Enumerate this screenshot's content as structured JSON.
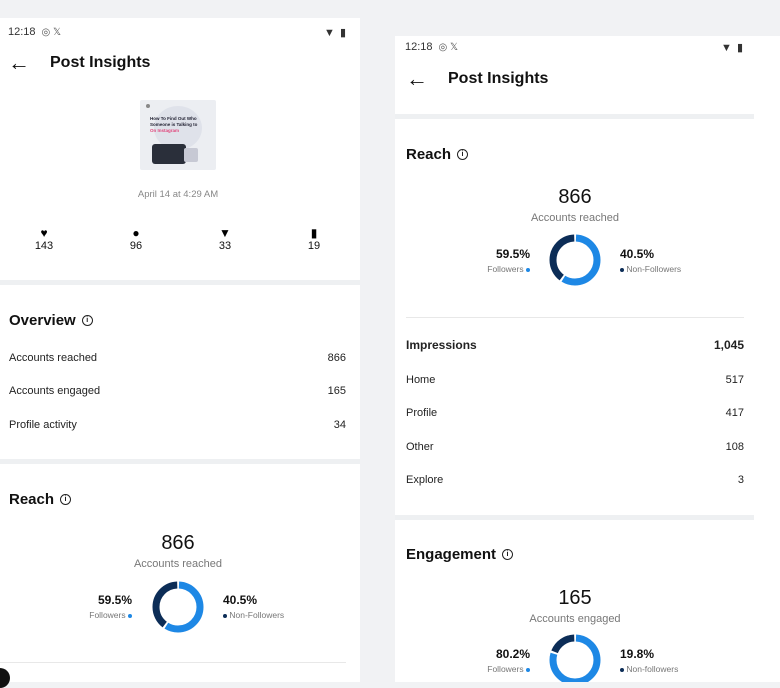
{
  "colors": {
    "followers": "#1e88e5",
    "non_followers": "#0c2d57"
  },
  "left": {
    "status": {
      "time": "12:18",
      "icons": "◎ 𝕏",
      "sys": "▼ ▮"
    },
    "header": {
      "back": "←",
      "title": "Post Insights"
    },
    "post": {
      "thumb_lines": [
        "How To Find Out Who",
        "Someone is Talking to"
      ],
      "thumb_highlight": "On Instagram",
      "date": "April 14 at 4:29 AM"
    },
    "stats": [
      {
        "icon": "heart-icon",
        "glyph": "♥",
        "value": "143"
      },
      {
        "icon": "comment-icon",
        "glyph": "●",
        "value": "96"
      },
      {
        "icon": "share-icon",
        "glyph": "▼",
        "value": "33"
      },
      {
        "icon": "bookmark-icon",
        "glyph": "▮",
        "value": "19"
      }
    ],
    "overview": {
      "title": "Overview",
      "info": "i",
      "rows": [
        {
          "label": "Accounts reached",
          "value": "866"
        },
        {
          "label": "Accounts engaged",
          "value": "165"
        },
        {
          "label": "Profile activity",
          "value": "34"
        }
      ]
    },
    "reach": {
      "title": "Reach",
      "info": "i",
      "total": "866",
      "total_label": "Accounts reached",
      "followers_pct": "59.5%",
      "followers_label": "Followers",
      "non_followers_pct": "40.5%",
      "non_followers_label": "Non-Followers",
      "followers_fraction": 0.595
    }
  },
  "right": {
    "status": {
      "time": "12:18",
      "icons": "◎ 𝕏",
      "sys": "▼ ▮"
    },
    "header": {
      "back": "←",
      "title": "Post Insights"
    },
    "reach": {
      "title": "Reach",
      "info": "i",
      "total": "866",
      "total_label": "Accounts reached",
      "followers_pct": "59.5%",
      "followers_label": "Followers",
      "non_followers_pct": "40.5%",
      "non_followers_label": "Non-Followers",
      "followers_fraction": 0.595
    },
    "impressions": {
      "title": "Impressions",
      "total": "1,045",
      "rows": [
        {
          "label": "Home",
          "value": "517"
        },
        {
          "label": "Profile",
          "value": "417"
        },
        {
          "label": "Other",
          "value": "108"
        },
        {
          "label": "Explore",
          "value": "3"
        }
      ]
    },
    "engagement": {
      "title": "Engagement",
      "info": "i",
      "total": "165",
      "total_label": "Accounts engaged",
      "followers_pct": "80.2%",
      "followers_label": "Followers",
      "non_followers_pct": "19.8%",
      "non_followers_label": "Non-followers",
      "followers_fraction": 0.802
    }
  }
}
